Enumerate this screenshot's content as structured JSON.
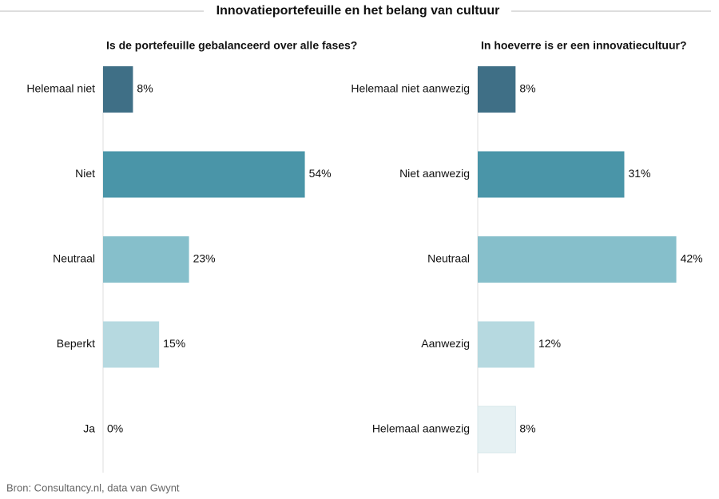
{
  "header": {
    "title": "Innovatieportefeuille en het belang van cultuur"
  },
  "footer": {
    "source": "Bron: Consultancy.nl, data van Gwynt"
  },
  "chart_data": [
    {
      "type": "bar",
      "orientation": "horizontal",
      "title": "Is de portefeuille gebalanceerd over alle fases?",
      "categories": [
        "Helemaal niet",
        "Niet",
        "Neutraal",
        "Beperkt",
        "Ja"
      ],
      "values": [
        8,
        54,
        23,
        15,
        0
      ],
      "value_labels": [
        "8%",
        "54%",
        "23%",
        "15%",
        "0%"
      ],
      "colors": [
        "#3f6f86",
        "#4a95a8",
        "#86bfcb",
        "#b6d9e0",
        "#e6f1f3"
      ],
      "xlim": [
        0,
        62
      ]
    },
    {
      "type": "bar",
      "orientation": "horizontal",
      "title": "In hoeverre is er een innovatiecultuur?",
      "categories": [
        "Helemaal niet aanwezig",
        "Niet aanwezig",
        "Neutraal",
        "Aanwezig",
        "Helemaal aanwezig"
      ],
      "values": [
        8,
        31,
        42,
        12,
        8
      ],
      "value_labels": [
        "8%",
        "31%",
        "42%",
        "12%",
        "8%"
      ],
      "colors": [
        "#3f6f86",
        "#4a95a8",
        "#86bfcb",
        "#b6d9e0",
        "#e6f1f3"
      ],
      "xlim": [
        0,
        49
      ]
    }
  ]
}
